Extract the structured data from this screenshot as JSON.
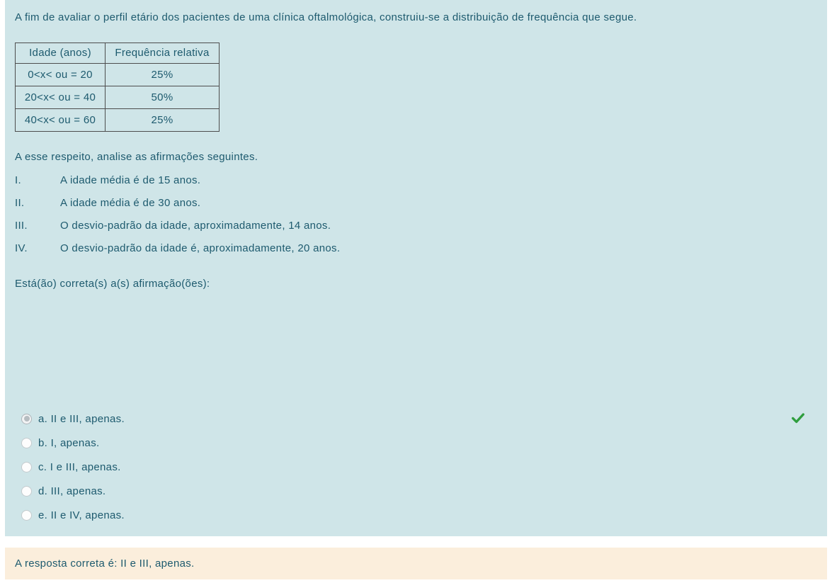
{
  "colors": {
    "panel_background": "#cfe5e8",
    "text": "#1d5a6e",
    "feedback_background": "#fbeedc",
    "table_border": "#4d4d4d",
    "check_green": "#2f9e3e"
  },
  "question": {
    "intro": "A fim de avaliar o perfil etário dos pacientes de uma clínica oftalmológica, construiu-se a distribuição de frequência que segue.",
    "table": {
      "headers": [
        "Idade (anos)",
        "Frequência relativa"
      ],
      "rows": [
        [
          "0<x< ou = 20",
          "25%"
        ],
        [
          "20<x< ou = 40",
          "50%"
        ],
        [
          "40<x< ou = 60",
          "25%"
        ]
      ]
    },
    "analyze_prompt": "A esse respeito, analise as afirmações seguintes.",
    "statements": [
      {
        "numeral": "I.",
        "text": "A idade média é de 15 anos."
      },
      {
        "numeral": "II.",
        "text": "A idade média é de 30 anos."
      },
      {
        "numeral": "III.",
        "text": "O desvio-padrão da idade, aproximadamente, 14 anos."
      },
      {
        "numeral": "IV.",
        "text": "O desvio-padrão da idade é, aproximadamente, 20 anos."
      }
    ],
    "answer_prompt": "Está(ão) correta(s) a(s) afirmação(ões):"
  },
  "options": [
    {
      "label": "a. II e III, apenas.",
      "selected": true,
      "marked_correct": true
    },
    {
      "label": "b. I, apenas.",
      "selected": false,
      "marked_correct": false
    },
    {
      "label": "c. I e III, apenas.",
      "selected": false,
      "marked_correct": false
    },
    {
      "label": "d. III, apenas.",
      "selected": false,
      "marked_correct": false
    },
    {
      "label": "e. II e IV, apenas.",
      "selected": false,
      "marked_correct": false
    }
  ],
  "icons": {
    "correct_check": "check-icon"
  },
  "feedback": {
    "text": "A resposta correta é: II e III, apenas."
  }
}
